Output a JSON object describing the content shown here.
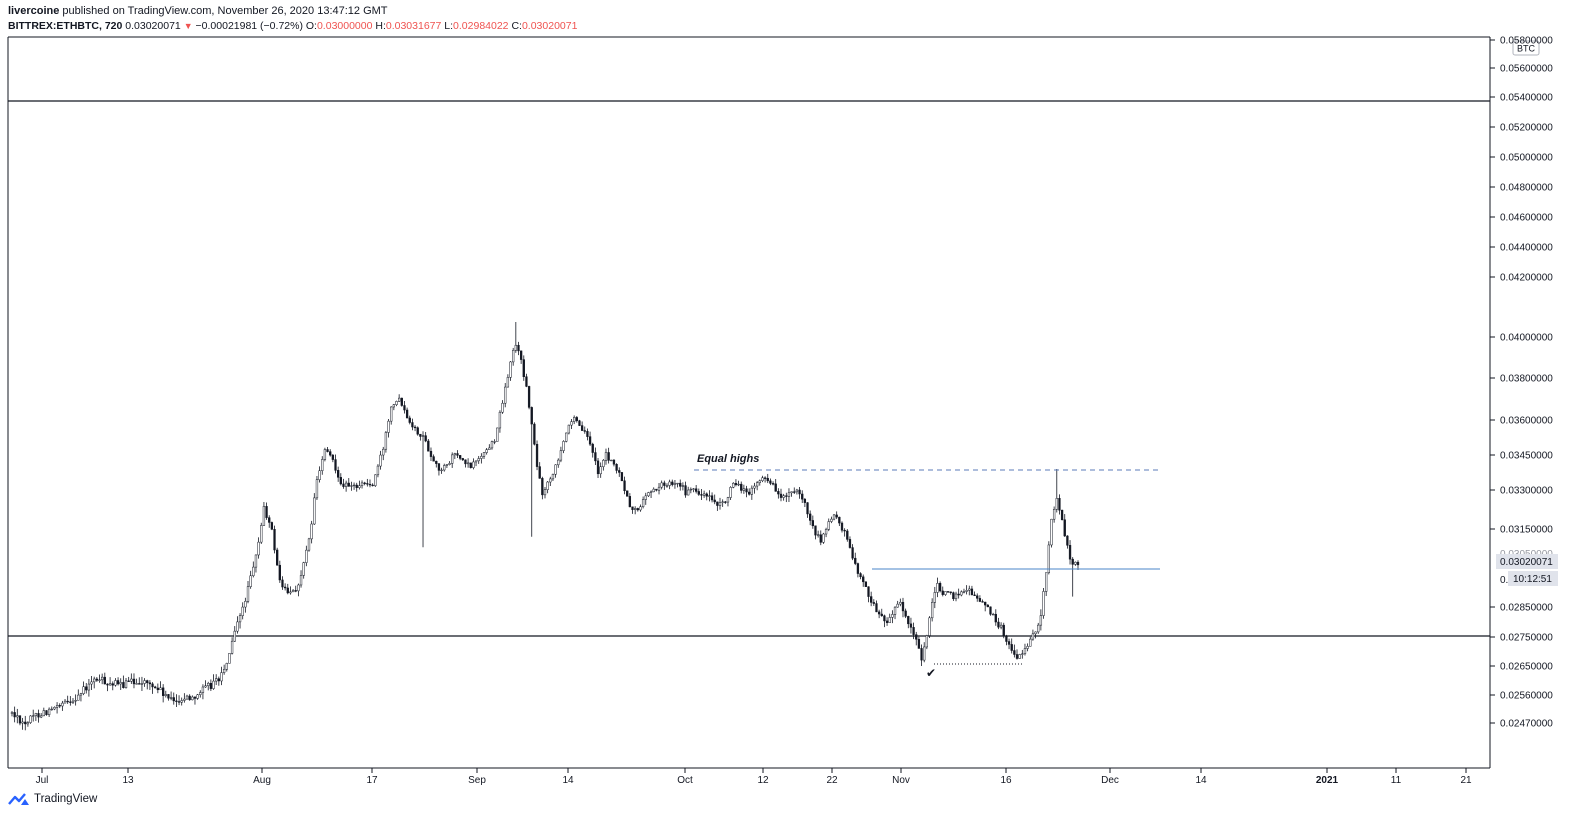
{
  "header": {
    "publisher": "livercoine",
    "published_text": "published on TradingView.com, November 26, 2020 13:47:12 GMT",
    "symbol": "BITTREX:ETHBTC, 720",
    "last": "0.03020071",
    "change": "−0.00021981 (−0.72%)",
    "o_label": "O:",
    "o_value": "0.03000000",
    "h_label": "H:",
    "h_value": "0.03031677",
    "l_label": "L:",
    "l_value": "0.02984022",
    "c_label": "C:",
    "c_value": "0.03020071"
  },
  "price_axis": {
    "currency": "BTC",
    "ticks": [
      "0.05800000",
      "0.05600000",
      "0.05400000",
      "0.05200000",
      "0.05000000",
      "0.04800000",
      "0.04600000",
      "0.04400000",
      "0.04200000",
      "0.04000000",
      "0.03800000",
      "0.03600000",
      "0.03450000",
      "0.03300000",
      "0.03150000",
      "0.02850000",
      "0.02750000",
      "0.02650000",
      "0.02560000",
      "0.02470000"
    ],
    "hidden_tick": "0.03050000",
    "partial_tick": "0.",
    "last_price_label": "0.03020071",
    "countdown_label": "10:12:51"
  },
  "time_axis": {
    "ticks": [
      {
        "label": "Jul",
        "bold": false
      },
      {
        "label": "13",
        "bold": false
      },
      {
        "label": "Aug",
        "bold": false
      },
      {
        "label": "17",
        "bold": false
      },
      {
        "label": "Sep",
        "bold": false
      },
      {
        "label": "14",
        "bold": false
      },
      {
        "label": "Oct",
        "bold": false
      },
      {
        "label": "12",
        "bold": false
      },
      {
        "label": "22",
        "bold": false
      },
      {
        "label": "Nov",
        "bold": false
      },
      {
        "label": "16",
        "bold": false
      },
      {
        "label": "Dec",
        "bold": false
      },
      {
        "label": "14",
        "bold": false
      },
      {
        "label": "2021",
        "bold": true
      },
      {
        "label": "11",
        "bold": false
      },
      {
        "label": "21",
        "bold": false
      }
    ]
  },
  "annotations": {
    "equal_highs_label": "Equal highs",
    "checkmark": "✔"
  },
  "colors": {
    "up": "#ffffff",
    "down": "#131722",
    "wick": "#131722",
    "dashed_line": "#5b7bb8",
    "blue_line": "#4a86c8",
    "axis_text": "#131722",
    "red": "#ef5350"
  },
  "footer": {
    "brand": "TradingView"
  },
  "chart_data": {
    "type": "candlestick",
    "symbol": "BITTREX:ETHBTC",
    "interval": "720",
    "currency": "BTC",
    "x_range": [
      "2020-06-26",
      "2020-12-25"
    ],
    "y_ticks": [
      0.058,
      0.056,
      0.054,
      0.052,
      0.05,
      0.048,
      0.046,
      0.044,
      0.042,
      0.04,
      0.038,
      0.036,
      0.0345,
      0.033,
      0.0315,
      0.0285,
      0.0275,
      0.0265,
      0.0256,
      0.0247
    ],
    "last_price": 0.03020071,
    "path": [
      [
        0,
        0.025
      ],
      [
        5,
        0.0247
      ],
      [
        10,
        0.025
      ],
      [
        18,
        0.0252
      ],
      [
        25,
        0.0256
      ],
      [
        32,
        0.0261
      ],
      [
        40,
        0.0259
      ],
      [
        48,
        0.02605
      ],
      [
        55,
        0.0258
      ],
      [
        60,
        0.0254
      ],
      [
        68,
        0.02555
      ],
      [
        75,
        0.0259
      ],
      [
        80,
        0.0263
      ],
      [
        84,
        0.0276
      ],
      [
        88,
        0.0288
      ],
      [
        92,
        0.0304
      ],
      [
        95,
        0.0323
      ],
      [
        98,
        0.0314
      ],
      [
        101,
        0.0295
      ],
      [
        104,
        0.029
      ],
      [
        108,
        0.0293
      ],
      [
        112,
        0.031
      ],
      [
        115,
        0.0334
      ],
      [
        118,
        0.0347
      ],
      [
        121,
        0.0343
      ],
      [
        124,
        0.0333
      ],
      [
        128,
        0.0331
      ],
      [
        132,
        0.0333
      ],
      [
        136,
        0.0332
      ],
      [
        140,
        0.0348
      ],
      [
        143,
        0.0367
      ],
      [
        146,
        0.0371
      ],
      [
        149,
        0.0362
      ],
      [
        152,
        0.0356
      ],
      [
        155,
        0.0353
      ],
      [
        158,
        0.0345
      ],
      [
        161,
        0.0339
      ],
      [
        164,
        0.034
      ],
      [
        167,
        0.0346
      ],
      [
        170,
        0.0342
      ],
      [
        173,
        0.034
      ],
      [
        176,
        0.0344
      ],
      [
        179,
        0.0347
      ],
      [
        182,
        0.0352
      ],
      [
        185,
        0.0368
      ],
      [
        188,
        0.0388
      ],
      [
        190,
        0.0397
      ],
      [
        192,
        0.0388
      ],
      [
        194,
        0.0375
      ],
      [
        196,
        0.0358
      ],
      [
        198,
        0.034
      ],
      [
        200,
        0.0329
      ],
      [
        203,
        0.0335
      ],
      [
        206,
        0.0344
      ],
      [
        209,
        0.0355
      ],
      [
        212,
        0.036
      ],
      [
        215,
        0.0356
      ],
      [
        218,
        0.035
      ],
      [
        221,
        0.0338
      ],
      [
        224,
        0.0345
      ],
      [
        227,
        0.0341
      ],
      [
        230,
        0.0334
      ],
      [
        233,
        0.0323
      ],
      [
        236,
        0.0322
      ],
      [
        239,
        0.0328
      ],
      [
        242,
        0.033
      ],
      [
        245,
        0.0332
      ],
      [
        248,
        0.0333
      ],
      [
        251,
        0.0334
      ],
      [
        254,
        0.0329
      ],
      [
        257,
        0.033
      ],
      [
        260,
        0.0328
      ],
      [
        263,
        0.0327
      ],
      [
        266,
        0.0323
      ],
      [
        269,
        0.0326
      ],
      [
        272,
        0.0332
      ],
      [
        275,
        0.0331
      ],
      [
        278,
        0.0328
      ],
      [
        281,
        0.0333
      ],
      [
        284,
        0.0336
      ],
      [
        287,
        0.0332
      ],
      [
        290,
        0.0327
      ],
      [
        293,
        0.0328
      ],
      [
        296,
        0.0329
      ],
      [
        299,
        0.0324
      ],
      [
        302,
        0.0315
      ],
      [
        305,
        0.031
      ],
      [
        308,
        0.0318
      ],
      [
        311,
        0.032
      ],
      [
        314,
        0.0313
      ],
      [
        317,
        0.0305
      ],
      [
        320,
        0.0296
      ],
      [
        323,
        0.029
      ],
      [
        326,
        0.0284
      ],
      [
        329,
        0.028
      ],
      [
        332,
        0.0283
      ],
      [
        335,
        0.0286
      ],
      [
        338,
        0.0279
      ],
      [
        341,
        0.0274
      ],
      [
        343,
        0.0268
      ],
      [
        345,
        0.0276
      ],
      [
        347,
        0.0286
      ],
      [
        349,
        0.0293
      ],
      [
        352,
        0.029
      ],
      [
        355,
        0.0289
      ],
      [
        358,
        0.0291
      ],
      [
        361,
        0.0292
      ],
      [
        364,
        0.0288
      ],
      [
        367,
        0.0286
      ],
      [
        370,
        0.0282
      ],
      [
        373,
        0.0278
      ],
      [
        376,
        0.0272
      ],
      [
        379,
        0.0268
      ],
      [
        382,
        0.027
      ],
      [
        385,
        0.0275
      ],
      [
        388,
        0.0282
      ],
      [
        390,
        0.0299
      ],
      [
        392,
        0.0318
      ],
      [
        394,
        0.0328
      ],
      [
        396,
        0.0318
      ],
      [
        398,
        0.0308
      ],
      [
        400,
        0.0301
      ],
      [
        402,
        0.0302
      ]
    ]
  }
}
